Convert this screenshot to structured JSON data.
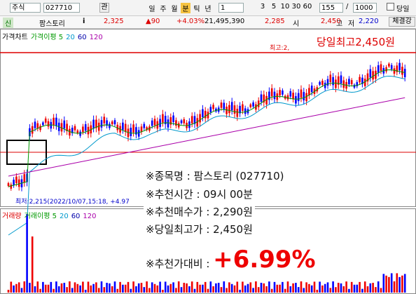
{
  "toolbar": {
    "market": "주식",
    "code": "027710",
    "favorite": "관",
    "periods": [
      "일",
      "주",
      "월",
      "분",
      "틱",
      "년"
    ],
    "interval": "1",
    "minutes": [
      "3",
      "5",
      "10",
      "30",
      "60"
    ],
    "count": "155",
    "total": "1000",
    "today": "당일"
  },
  "info": {
    "badge": "신",
    "name": "팜스토리",
    "info_button": "i",
    "price": "2,325",
    "change": "▲90",
    "change_pct": "+4.03%",
    "volume": "21,495,390",
    "open_label": "시",
    "open": "2,285",
    "high_label": "고",
    "high": "2,450",
    "low_label": "저",
    "low": "2,220",
    "tab": "체결강"
  },
  "price_chart": {
    "legend": [
      "가격차트",
      "가격이평 5",
      "20",
      "60",
      "120"
    ],
    "high_marker": "최고:2,",
    "high_note": "당일최고2,450원",
    "low_marker": "최저:2,215(2022/10/07,15:18, +4.97"
  },
  "volume_chart": {
    "legend": [
      "거래량",
      "거래이평 5",
      "20",
      "60",
      "120"
    ]
  },
  "overlay": {
    "lines": [
      "※종목명 : 팜스토리 (027710)",
      "※추천시간 : 09시 00분",
      "※추천매수가 : 2,290원",
      "※당일최고가 : 2,450원"
    ],
    "gain_label": "※추천가대비 : ",
    "gain": "+6.99%"
  }
}
